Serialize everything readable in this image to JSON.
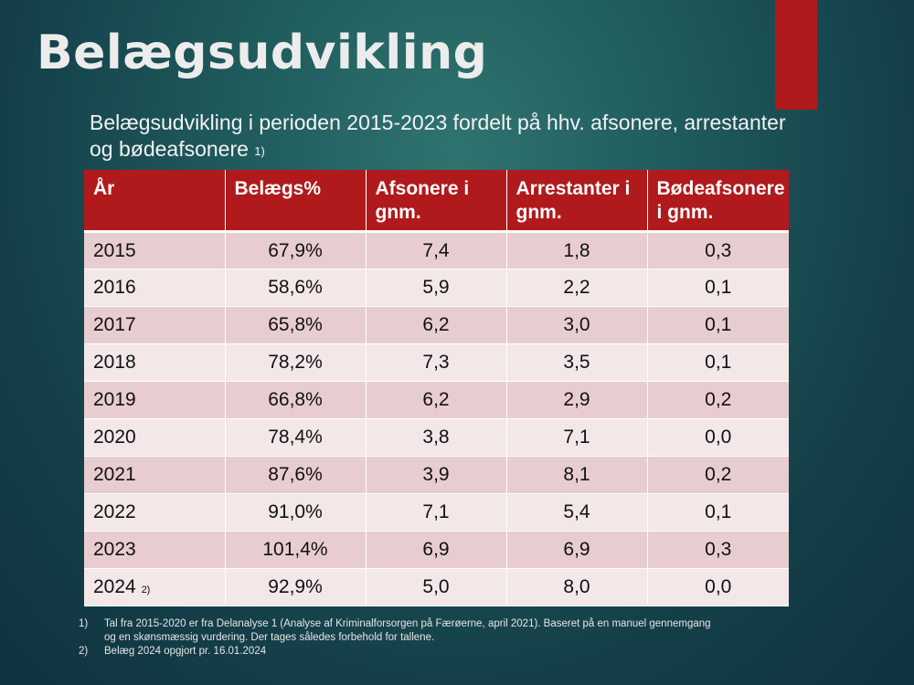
{
  "title": "Belægsudvikling",
  "subtitle": {
    "text": "Belægsudvikling i perioden 2015-2023 fordelt på hhv. afsonere, arrestanter og bødeafsonere",
    "note": "1)"
  },
  "colors": {
    "accent": "#b01a1c",
    "row_odd": "#e8cdd0",
    "row_even": "#f3e7e7"
  },
  "table": {
    "headers": [
      "År",
      "Belægs%",
      "Afsonere i gnm.",
      "Arrestanter i gnm.",
      "Bødeafsonere i gnm."
    ],
    "rows": [
      {
        "year": "2015",
        "note": "",
        "belaeg": "67,9%",
        "afsonere": "7,4",
        "arrestanter": "1,8",
        "boedeafsonere": "0,3"
      },
      {
        "year": "2016",
        "note": "",
        "belaeg": "58,6%",
        "afsonere": "5,9",
        "arrestanter": "2,2",
        "boedeafsonere": "0,1"
      },
      {
        "year": "2017",
        "note": "",
        "belaeg": "65,8%",
        "afsonere": "6,2",
        "arrestanter": "3,0",
        "boedeafsonere": "0,1"
      },
      {
        "year": "2018",
        "note": "",
        "belaeg": "78,2%",
        "afsonere": "7,3",
        "arrestanter": "3,5",
        "boedeafsonere": "0,1"
      },
      {
        "year": "2019",
        "note": "",
        "belaeg": "66,8%",
        "afsonere": "6,2",
        "arrestanter": "2,9",
        "boedeafsonere": "0,2"
      },
      {
        "year": "2020",
        "note": "",
        "belaeg": "78,4%",
        "afsonere": "3,8",
        "arrestanter": "7,1",
        "boedeafsonere": "0,0"
      },
      {
        "year": "2021",
        "note": "",
        "belaeg": "87,6%",
        "afsonere": "3,9",
        "arrestanter": "8,1",
        "boedeafsonere": "0,2"
      },
      {
        "year": "2022",
        "note": "",
        "belaeg": "91,0%",
        "afsonere": "7,1",
        "arrestanter": "5,4",
        "boedeafsonere": "0,1"
      },
      {
        "year": "2023",
        "note": "",
        "belaeg": "101,4%",
        "afsonere": "6,9",
        "arrestanter": "6,9",
        "boedeafsonere": "0,3"
      },
      {
        "year": "2024",
        "note": "2)",
        "belaeg": "92,9%",
        "afsonere": "5,0",
        "arrestanter": "8,0",
        "boedeafsonere": "0,0"
      }
    ]
  },
  "footnotes": [
    {
      "num": "1)",
      "text": "Tal fra 2015-2020 er fra Delanalyse 1 (Analyse af Kriminalforsorgen på Færøerne, april 2021). Baseret på en manuel gennemgang og en skønsmæssig vurdering. Der tages således forbehold for tallene."
    },
    {
      "num": "2)",
      "text": "Belæg 2024 opgjort pr. 16.01.2024"
    }
  ]
}
